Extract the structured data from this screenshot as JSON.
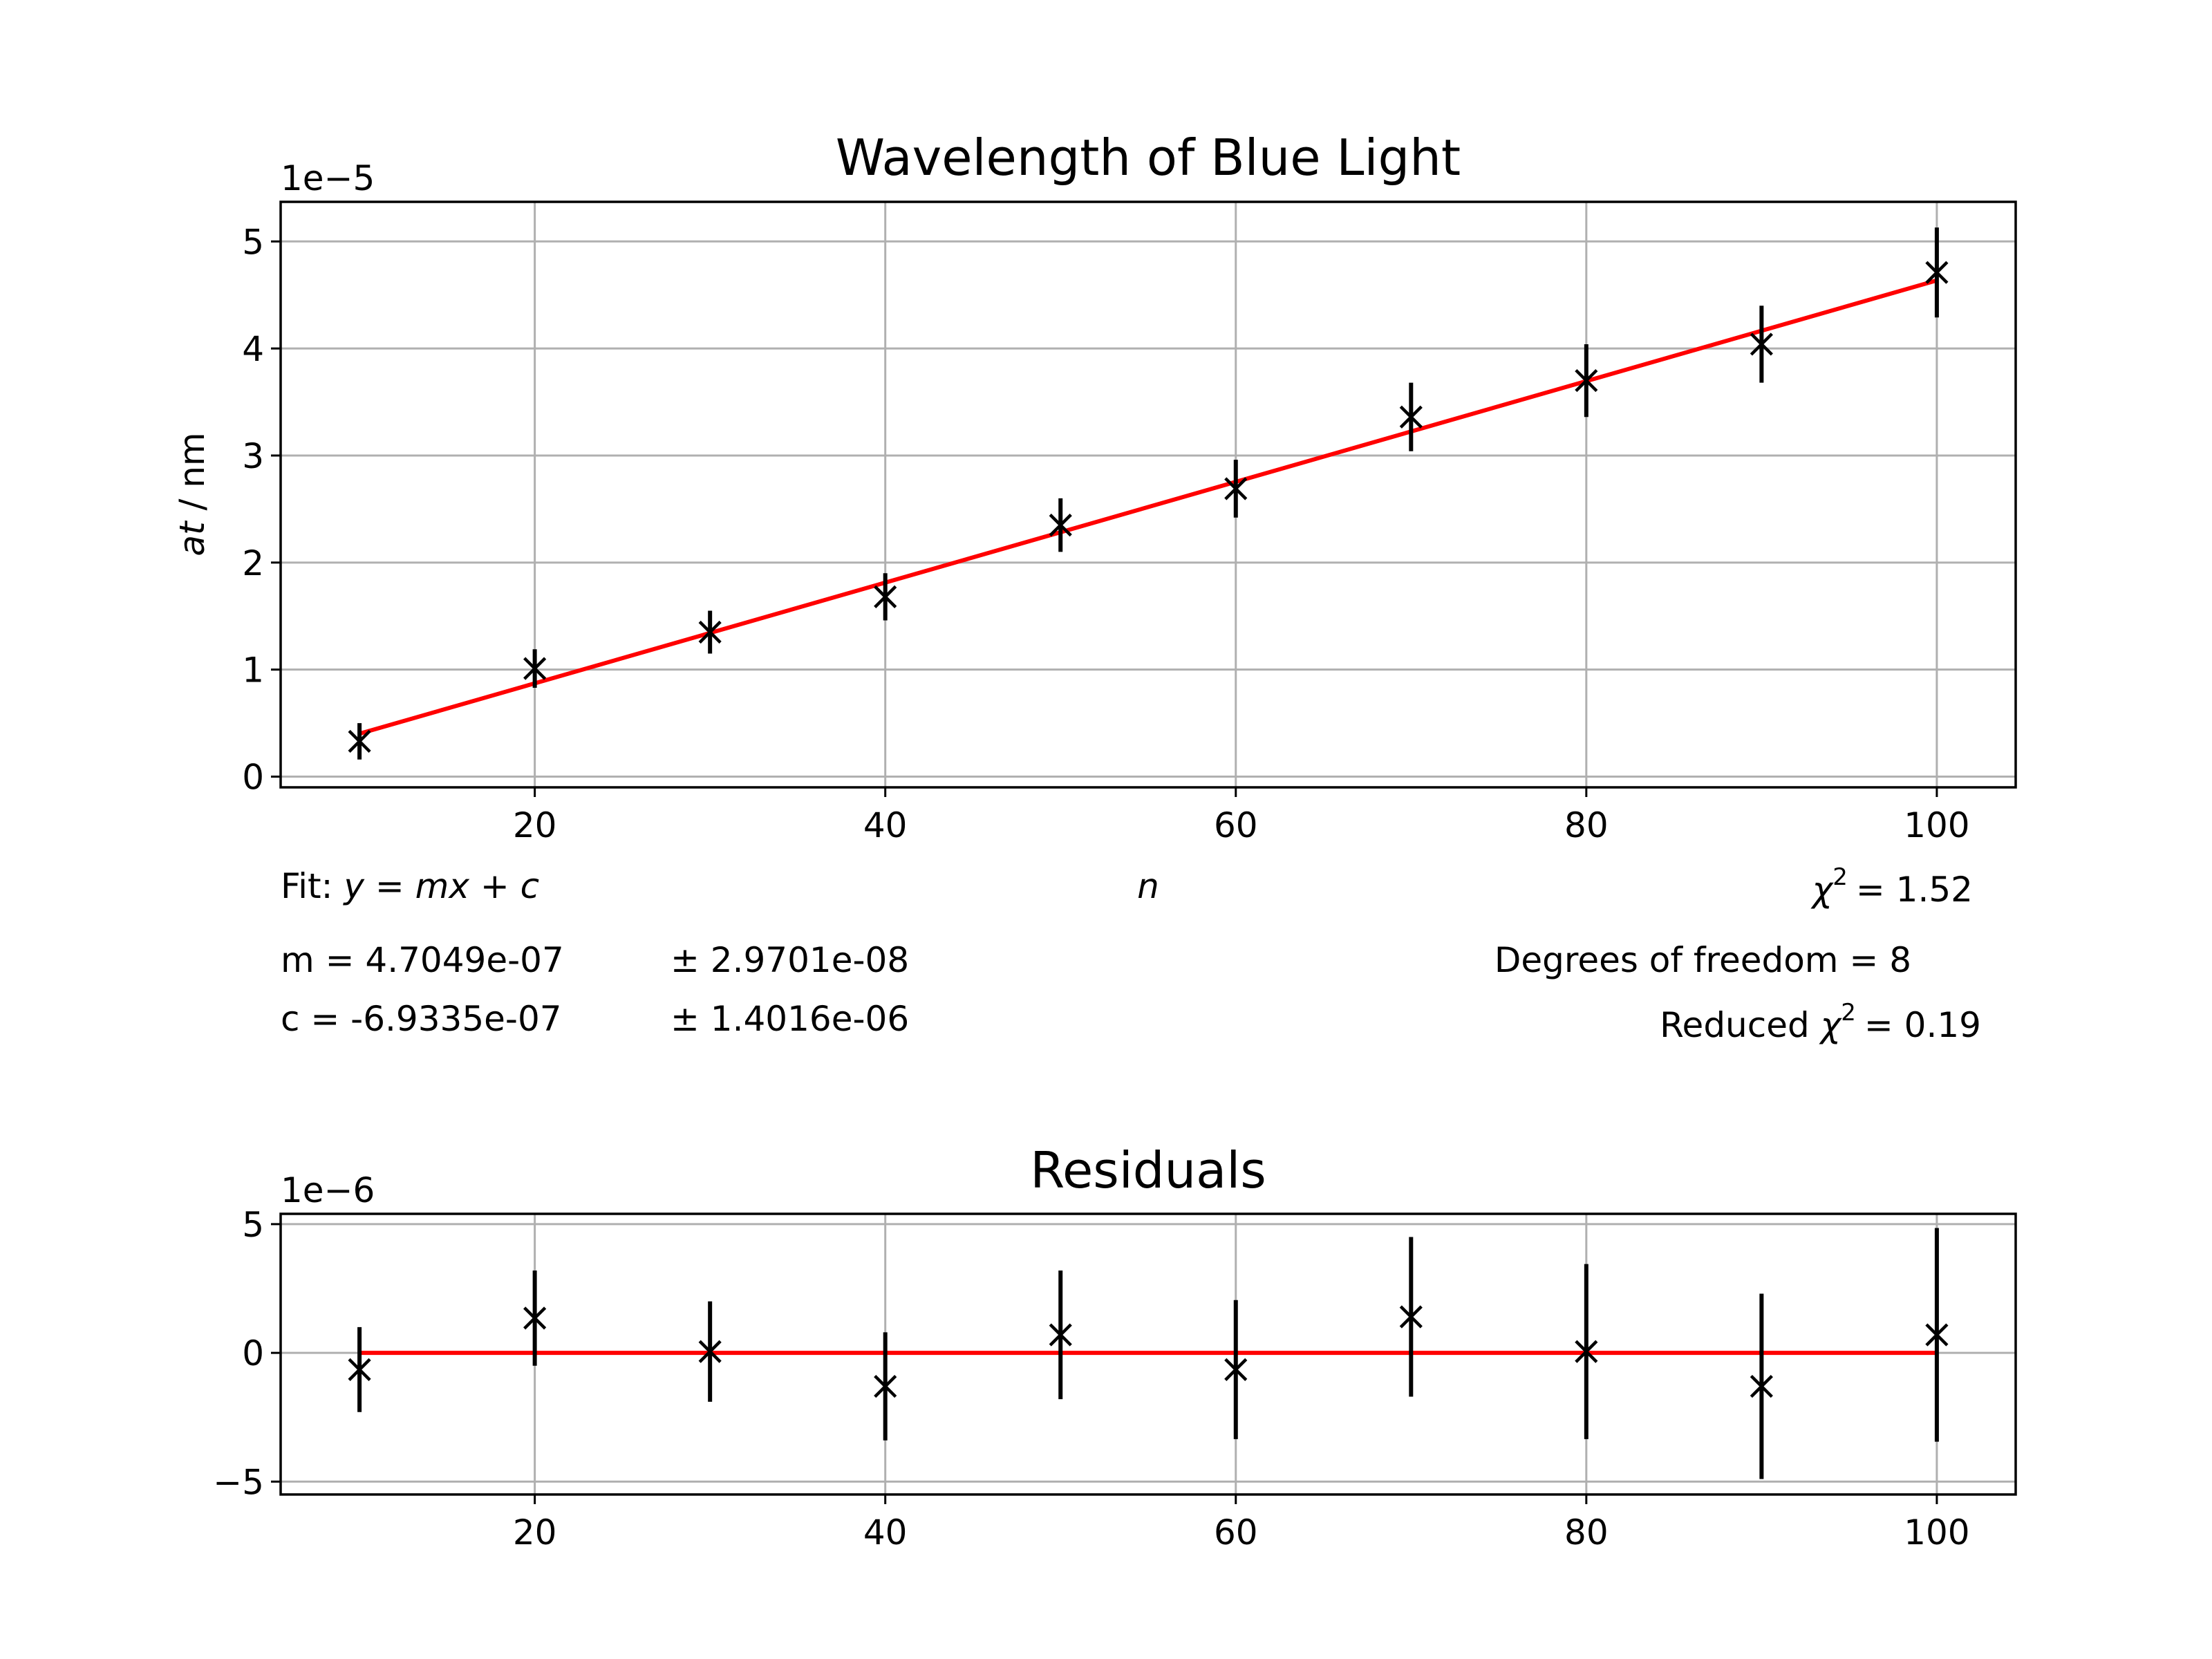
{
  "colors": {
    "fit": "#ff0000",
    "data": "#000000",
    "grid": "#b0b0b0"
  },
  "chart_data": [
    {
      "type": "scatter",
      "title": "Wavelength of Blue Light",
      "xlabel": "n",
      "ylabel_italic": "at",
      "ylabel_unit": " / nm",
      "offset_text": "1e−5",
      "scale": 1e-05,
      "xlim": [
        5.5,
        104.5
      ],
      "ylim": [
        -0.1,
        5.37
      ],
      "xticks": [
        20,
        40,
        60,
        80,
        100
      ],
      "yticks": [
        0,
        1,
        2,
        3,
        4,
        5
      ],
      "x": [
        10,
        20,
        30,
        40,
        50,
        60,
        70,
        80,
        90,
        100
      ],
      "y": [
        0.33,
        1.01,
        1.35,
        1.68,
        2.35,
        2.69,
        3.36,
        3.7,
        4.04,
        4.71
      ],
      "yerr": [
        0.17,
        0.18,
        0.2,
        0.22,
        0.25,
        0.27,
        0.32,
        0.34,
        0.36,
        0.42
      ],
      "fit": {
        "x": [
          10,
          100
        ],
        "y": [
          0.401,
          4.636
        ]
      },
      "grid": true
    },
    {
      "type": "scatter",
      "title": "Residuals",
      "offset_text": "1e−6",
      "scale": 1e-06,
      "xlim": [
        5.5,
        104.5
      ],
      "ylim": [
        -5.5,
        5.4
      ],
      "xticks": [
        20,
        40,
        60,
        80,
        100
      ],
      "yticks": [
        -5,
        0,
        5
      ],
      "x": [
        10,
        20,
        30,
        40,
        50,
        60,
        70,
        80,
        90,
        100
      ],
      "y": [
        -0.65,
        1.35,
        0.05,
        -1.3,
        0.7,
        -0.65,
        1.4,
        0.05,
        -1.3,
        0.7
      ],
      "yerr": [
        1.65,
        1.85,
        1.95,
        2.1,
        2.5,
        2.7,
        3.1,
        3.4,
        3.6,
        4.15
      ],
      "fit": {
        "x": [
          10,
          100
        ],
        "y": [
          0,
          0
        ]
      },
      "grid": true
    }
  ],
  "annotations": {
    "fit_prefix": "Fit: ",
    "fit_equation": "y = mx + c",
    "m_line": "m = 4.7049e-07",
    "m_err": "± 2.9701e-08",
    "c_line": "c = -6.9335e-07",
    "c_err": "± 1.4016e-06",
    "chi": "χ",
    "chi_sq_value": "= 1.52",
    "dof": "Degrees of freedom = 8",
    "reduced_prefix": "Reduced ",
    "reduced_value": "= 0.19",
    "sup": "2"
  }
}
